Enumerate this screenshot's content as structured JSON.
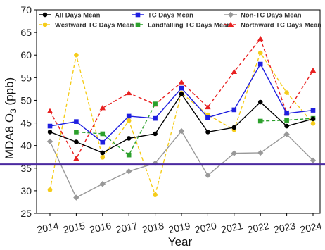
{
  "chart_data": {
    "type": "line",
    "xlabel": "Year",
    "ylabel_main": "MDA8 O",
    "ylabel_sub": "3",
    "ylabel_unit": " (ppb)",
    "ylim": [
      25,
      70
    ],
    "yticks": [
      25,
      30,
      35,
      40,
      45,
      50,
      55,
      60,
      65,
      70
    ],
    "categories": [
      "2014",
      "2015",
      "2016",
      "2017",
      "2018",
      "2019",
      "2020",
      "2021",
      "2022",
      "2023",
      "2024"
    ],
    "legend_position": "top",
    "series": [
      {
        "name": "All Days Mean",
        "color": "#000000",
        "dash": "solid",
        "marker": "circle",
        "values": [
          43.0,
          40.8,
          38.4,
          41.6,
          42.6,
          51.4,
          43.0,
          44.0,
          49.6,
          44.3,
          45.9
        ]
      },
      {
        "name": "TC Days Mean",
        "color": "#1f1fe0",
        "dash": "solid",
        "marker": "square",
        "values": [
          44.3,
          45.3,
          40.7,
          46.5,
          46.0,
          52.7,
          46.2,
          47.9,
          58.0,
          47.1,
          47.8
        ]
      },
      {
        "name": "Non-TC Days Mean",
        "color": "#999999",
        "dash": "solid",
        "marker": "diamond",
        "values": [
          40.9,
          28.5,
          31.5,
          34.3,
          36.1,
          43.2,
          33.4,
          38.3,
          38.4,
          42.5,
          36.7
        ]
      },
      {
        "name": "Westward TC Days Mean",
        "color": "#f5cc1a",
        "dash": "dashed",
        "marker": "circle",
        "values": [
          30.2,
          60.0,
          37.4,
          45.5,
          29.1,
          51.6,
          46.8,
          43.5,
          60.5,
          51.7,
          44.9
        ]
      },
      {
        "name": "Landfalling TC Days Mean",
        "color": "#2ca02c",
        "dash": "dashed",
        "marker": "square",
        "values": [
          null,
          43.0,
          42.6,
          37.9,
          49.2,
          null,
          null,
          null,
          45.4,
          45.6,
          46.0
        ]
      },
      {
        "name": "Northward TC Days Mean",
        "color": "#e82020",
        "dash": "dashed",
        "marker": "triangle",
        "values": [
          47.6,
          37.1,
          48.3,
          51.6,
          49.1,
          54.0,
          48.5,
          56.3,
          63.6,
          47.2,
          56.6
        ]
      }
    ],
    "reference_line": {
      "value": 35.8,
      "color": "#4b2aa0"
    }
  }
}
